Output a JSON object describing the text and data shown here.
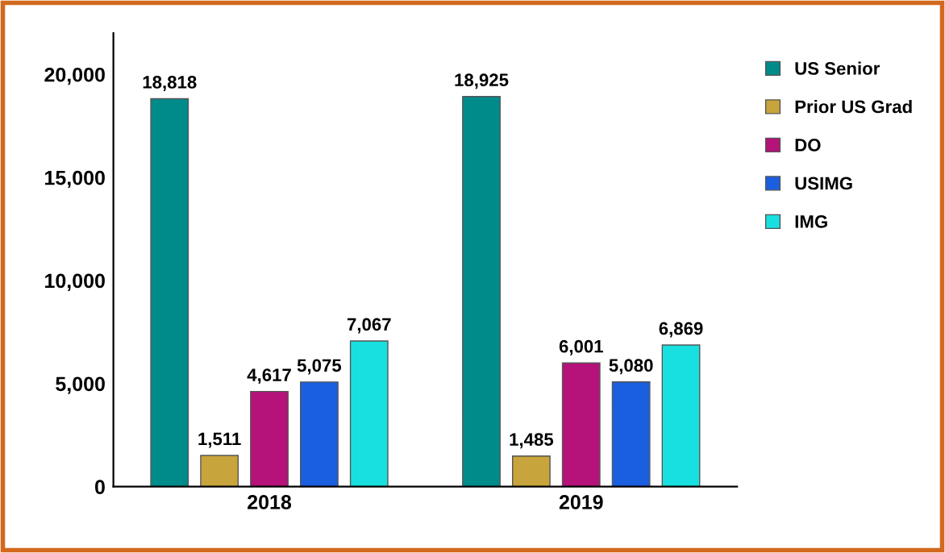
{
  "chart_data": {
    "type": "bar",
    "categories": [
      "2018",
      "2019"
    ],
    "series": [
      {
        "name": "US Senior",
        "color": "#008b8b",
        "values": [
          18818,
          18925
        ],
        "value_labels": [
          "18,818",
          "18,925"
        ]
      },
      {
        "name": "Prior US Grad",
        "color": "#c8a53c",
        "values": [
          1511,
          1485
        ],
        "value_labels": [
          "1,511",
          "1,485"
        ]
      },
      {
        "name": "DO",
        "color": "#b5127a",
        "values": [
          4617,
          6001
        ],
        "value_labels": [
          "4,617",
          "6,001"
        ]
      },
      {
        "name": "USIMG",
        "color": "#1a5fe0",
        "values": [
          5075,
          5080
        ],
        "value_labels": [
          "5,075",
          "5,080"
        ]
      },
      {
        "name": "IMG",
        "color": "#19e0e0",
        "values": [
          7067,
          6869
        ],
        "value_labels": [
          "7,067",
          "6,869"
        ]
      }
    ],
    "ylim": [
      0,
      22000
    ],
    "yticks": [
      {
        "value": 0,
        "label": "0"
      },
      {
        "value": 5000,
        "label": "5,000"
      },
      {
        "value": 10000,
        "label": "10,000"
      },
      {
        "value": 15000,
        "label": "15,000"
      },
      {
        "value": 20000,
        "label": "20,000"
      }
    ],
    "legend": "right",
    "grid": false
  }
}
